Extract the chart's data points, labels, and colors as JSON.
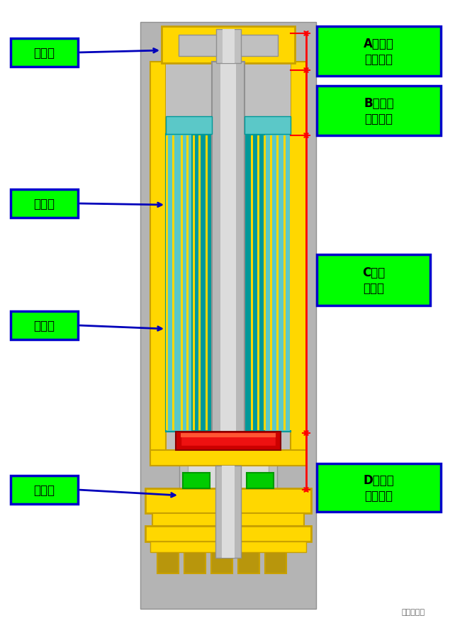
{
  "white_bg": "#ffffff",
  "fig_width": 6.42,
  "fig_height": 9.04,
  "labels": {
    "A": "A吸嘴盖\n配合尺寸",
    "B": "B棉和吸\n嘴盖间隙",
    "C": "C储油\n棉长度",
    "D": "D螺纹套\n配合尺寸",
    "left1": "吸嘴盖",
    "left2": "雾化套",
    "left3": "储油棉",
    "left4": "螺纹套",
    "watermark": "结构弹设计"
  },
  "colors": {
    "yellow": "#FFD700",
    "yellow_dark": "#C8A000",
    "yellow_dim": "#B8960C",
    "cyan": "#5BC8C8",
    "cyan_dark": "#009999",
    "cyan_mid": "#3AAEAE",
    "gray_bg": "#B4B4B4",
    "gray_body": "#C0C0C0",
    "gray_dark": "#909090",
    "gray_mid": "#AAAAAA",
    "silver_hi": "#DCDCDC",
    "silver_tube": "#B8B8B8",
    "red_seal": "#CC0000",
    "red_bright": "#EE1111",
    "green_seal": "#00CC00",
    "green_dark": "#009900",
    "blue_arrow": "#0000BB",
    "green_label": "#00FF00",
    "blue_border": "#0000CC",
    "white": "#FFFFFF"
  }
}
